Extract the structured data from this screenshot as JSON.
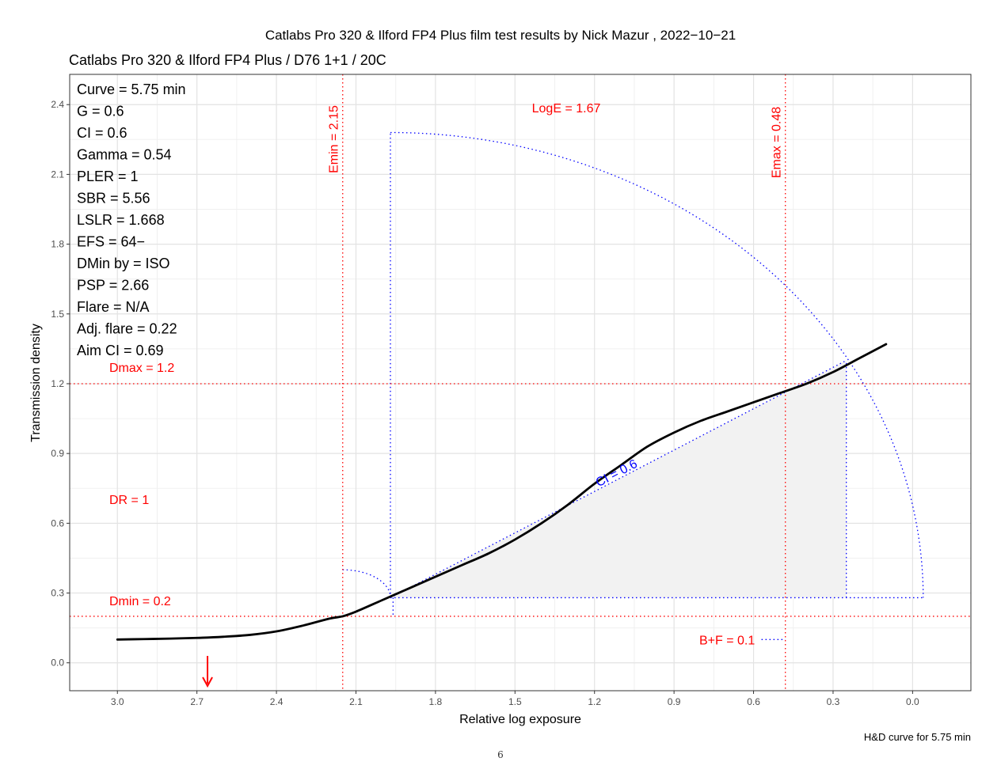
{
  "page": {
    "page_number": "6"
  },
  "chart_data": {
    "type": "line",
    "title": "Catlabs Pro 320 & Ilford FP4 Plus film test results by Nick Mazur , 2022−10−21",
    "subtitle": "Catlabs Pro 320 & Ilford FP4 Plus / D76 1+1 / 20C",
    "xlabel": "Relative log exposure",
    "ylabel": "Transmission density",
    "caption": "H&D curve for 5.75 min",
    "x_reversed": true,
    "xlim": [
      3.18,
      -0.22
    ],
    "ylim": [
      -0.12,
      2.53
    ],
    "x_ticks": [
      3.0,
      2.7,
      2.4,
      2.1,
      1.8,
      1.5,
      1.2,
      0.9,
      0.6,
      0.3,
      0.0
    ],
    "x_tick_labels": [
      "3.0",
      "2.7",
      "2.4",
      "2.1",
      "1.8",
      "1.5",
      "1.2",
      "0.9",
      "0.6",
      "0.3",
      "0.0"
    ],
    "y_ticks": [
      0.0,
      0.3,
      0.6,
      0.9,
      1.2,
      1.5,
      1.8,
      2.1,
      2.4
    ],
    "y_tick_labels": [
      "0.0",
      "0.3",
      "0.6",
      "0.9",
      "1.2",
      "1.5",
      "1.8",
      "2.1",
      "2.4"
    ],
    "grid": true,
    "series": [
      {
        "color": "#000000",
        "x": [
          3.0,
          2.9,
          2.8,
          2.7,
          2.6,
          2.5,
          2.4,
          2.3,
          2.2,
          2.15,
          2.1,
          2.0,
          1.9,
          1.8,
          1.7,
          1.6,
          1.5,
          1.4,
          1.3,
          1.2,
          1.1,
          1.0,
          0.9,
          0.8,
          0.7,
          0.6,
          0.5,
          0.4,
          0.3,
          0.2,
          0.1
        ],
        "y": [
          0.1,
          0.102,
          0.104,
          0.107,
          0.112,
          0.12,
          0.135,
          0.16,
          0.19,
          0.2,
          0.22,
          0.27,
          0.32,
          0.37,
          0.42,
          0.47,
          0.53,
          0.6,
          0.68,
          0.77,
          0.85,
          0.93,
          0.99,
          1.04,
          1.08,
          1.12,
          1.16,
          1.2,
          1.25,
          1.31,
          1.37
        ]
      }
    ],
    "stats_labels": [
      "Curve =  5.75 min",
      "G =  0.6",
      "CI =  0.6",
      "Gamma =  0.54",
      "PLER =  1",
      "SBR =  5.56",
      "LSLR =  1.668",
      "EFS = 64−",
      "DMin by = ISO",
      "PSP = 2.66",
      "Flare = N/A",
      "Adj. flare = 0.22",
      "Aim CI =  0.69"
    ],
    "reference_lines": {
      "emin_x": 2.15,
      "emax_x": 0.48,
      "dmax_y": 1.2,
      "dmin_y": 0.2,
      "color": "#ff0000"
    },
    "annotations": {
      "emin_label": "Emin = 2.15",
      "emax_label": "Emax = 0.48",
      "loge_label": "LogE =  1.67",
      "dmax_label": "Dmax = 1.2",
      "dmin_label": "Dmin = 0.2",
      "dr_label": "DR = 1",
      "bf_label": "B+F =  0.1",
      "ci_label": "CI = 0.6",
      "arrow_x": 2.66,
      "arrow_color": "#ff0000"
    },
    "ci_triangle": {
      "x_start": 1.97,
      "y_start": 0.28,
      "x_end": 0.25,
      "y_end": 1.3,
      "fill": "#f2f2f2",
      "line_color": "#0000ff"
    }
  }
}
